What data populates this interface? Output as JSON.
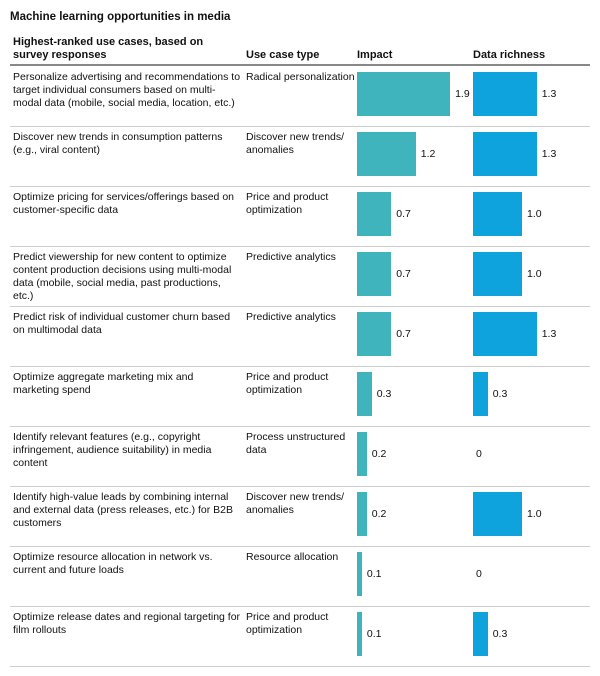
{
  "chart_data": {
    "type": "table",
    "title": "Machine learning opportunities in media",
    "columns": [
      "Highest-ranked use cases, based on survey responses",
      "Use case type",
      "Impact",
      "Data richness"
    ],
    "colors": {
      "impact": "#3fb4bc",
      "data_richness": "#0ea3dc"
    },
    "rows": [
      {
        "use_case": "Personalize advertising and recommendations to target individual consumers based on multi-modal data (mobile, social media, location, etc.)",
        "type": "Radical personalization",
        "impact": 1.9,
        "impact_label": "1.9",
        "data": 1.3,
        "data_label": "1.3"
      },
      {
        "use_case": "Discover new trends in consumption patterns (e.g., viral content)",
        "type": "Discover new trends/ anomalies",
        "impact": 1.2,
        "impact_label": "1.2",
        "data": 1.3,
        "data_label": "1.3"
      },
      {
        "use_case": "Optimize pricing for services/offerings based on customer-specific data",
        "type": "Price and product optimization",
        "impact": 0.7,
        "impact_label": "0.7",
        "data": 1.0,
        "data_label": "1.0"
      },
      {
        "use_case": "Predict viewership for new content to optimize content production decisions using multi-modal data (mobile, social media, past productions, etc.)",
        "type": "Predictive analytics",
        "impact": 0.7,
        "impact_label": "0.7",
        "data": 1.0,
        "data_label": "1.0"
      },
      {
        "use_case": "Predict risk of individual customer churn based on multimodal data",
        "type": "Predictive analytics",
        "impact": 0.7,
        "impact_label": "0.7",
        "data": 1.3,
        "data_label": "1.3"
      },
      {
        "use_case": "Optimize aggregate marketing mix and marketing spend",
        "type": "Price and product optimization",
        "impact": 0.3,
        "impact_label": "0.3",
        "data": 0.3,
        "data_label": "0.3"
      },
      {
        "use_case": "Identify relevant features (e.g., copyright infringement, audience suitability) in media content",
        "type": "Process unstructured data",
        "impact": 0.2,
        "impact_label": "0.2",
        "data": 0,
        "data_label": "0"
      },
      {
        "use_case": "Identify high-value leads by combining internal and external data (press releases, etc.) for B2B customers",
        "type": "Discover new trends/ anomalies",
        "impact": 0.2,
        "impact_label": "0.2",
        "data": 1.0,
        "data_label": "1.0"
      },
      {
        "use_case": "Optimize resource allocation in network vs. current and future loads",
        "type": "Resource allocation",
        "impact": 0.1,
        "impact_label": "0.1",
        "data": 0,
        "data_label": "0"
      },
      {
        "use_case": "Optimize release dates and regional targeting for film rollouts",
        "type": "Price and product optimization",
        "impact": 0.1,
        "impact_label": "0.1",
        "data": 0.3,
        "data_label": "0.3"
      }
    ]
  }
}
